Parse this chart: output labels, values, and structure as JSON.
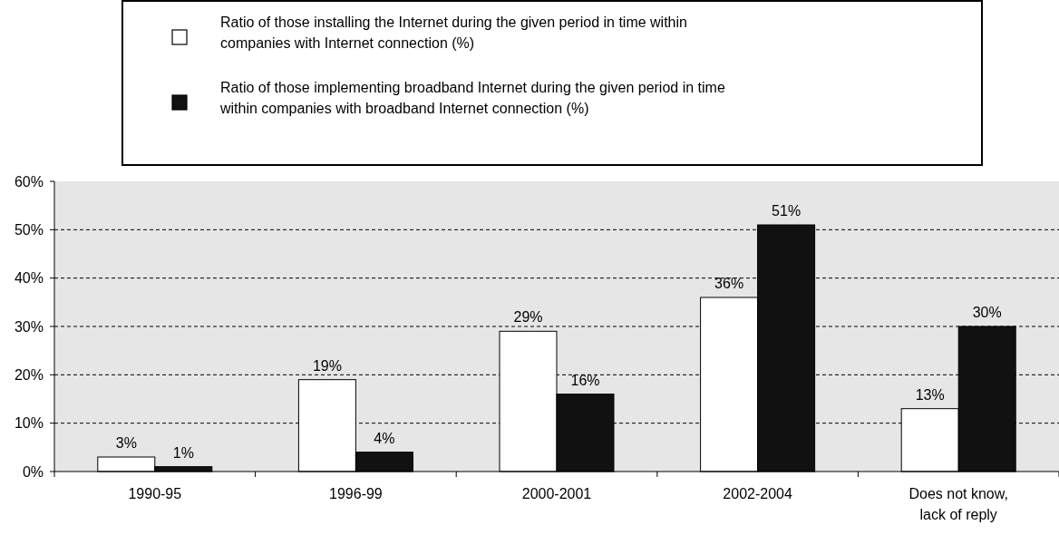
{
  "chart_data": {
    "type": "bar",
    "categories": [
      "1990-95",
      "1996-99",
      "2000-2001",
      "2002-2004",
      "Does not know, lack of reply"
    ],
    "series": [
      {
        "name": "Ratio of those installing the Internet during the given period in time within companies with Internet connection (%)",
        "color": "#ffffff",
        "values": [
          3,
          19,
          29,
          36,
          13
        ],
        "value_labels": [
          "3%",
          "19%",
          "29%",
          "36%",
          "13%"
        ]
      },
      {
        "name": "Ratio of those implementing broadband Internet during the given period in time within companies with broadband Internet connection (%)",
        "color": "#111111",
        "values": [
          1,
          4,
          16,
          51,
          30
        ],
        "value_labels": [
          "1%",
          "4%",
          "16%",
          "51%",
          "30%"
        ]
      }
    ],
    "ylim": [
      0,
      60
    ],
    "yticks": [
      {
        "value": 0,
        "label": "0%"
      },
      {
        "value": 10,
        "label": "10%"
      },
      {
        "value": 20,
        "label": "20%"
      },
      {
        "value": 30,
        "label": "30%"
      },
      {
        "value": 40,
        "label": "40%"
      },
      {
        "value": 50,
        "label": "50%"
      },
      {
        "value": 60,
        "label": "60%"
      }
    ],
    "grid": "y",
    "legend": "top"
  }
}
